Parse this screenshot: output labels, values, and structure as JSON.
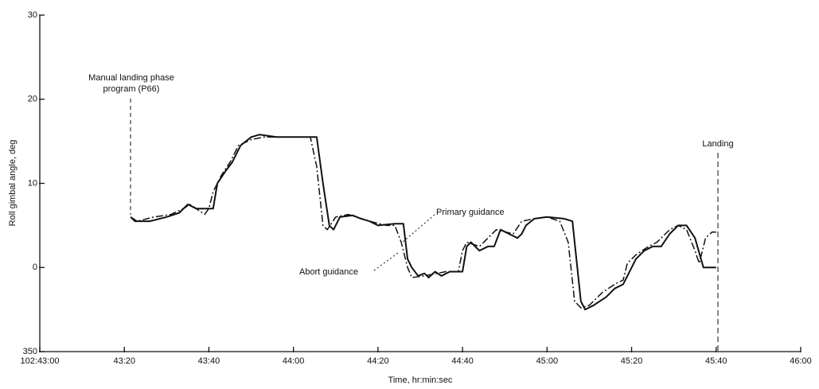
{
  "chart_data": {
    "type": "line",
    "ylabel": "Roll gimbal angle, deg",
    "xlabel": "Time, hr:min:sec",
    "xlim": [
      0,
      180
    ],
    "xticks": [
      {
        "value": 0,
        "label": "102:43:00"
      },
      {
        "value": 20,
        "label": "43:20"
      },
      {
        "value": 40,
        "label": "43:40"
      },
      {
        "value": 60,
        "label": "44:00"
      },
      {
        "value": 80,
        "label": "44:20"
      },
      {
        "value": 100,
        "label": "44:40"
      },
      {
        "value": 120,
        "label": "45:00"
      },
      {
        "value": 140,
        "label": "45:20"
      },
      {
        "value": 160,
        "label": "45:40"
      },
      {
        "value": 180,
        "label": "46:00"
      }
    ],
    "ylim": [
      -10,
      30
    ],
    "yticks": [
      {
        "value": -10,
        "label": "350"
      },
      0,
      10,
      20,
      30
    ],
    "grid": false,
    "annotations": [
      [
        "Manual landing phase",
        "program (P66)"
      ],
      [
        "Landing"
      ],
      [
        "Primary guidance"
      ],
      [
        "Abort guidance"
      ]
    ],
    "series": [
      {
        "name": "Primary guidance",
        "color": "#111111",
        "line_style": "solid",
        "x": [
          21.5,
          22.5,
          26,
          30,
          33,
          35,
          37,
          38.5,
          40,
          41,
          42,
          44,
          45.5,
          47.5,
          50,
          52,
          56,
          60,
          64,
          65.5,
          67,
          68.5,
          69.5,
          71,
          74,
          76,
          78,
          80,
          84,
          86,
          87,
          88,
          89.5,
          91,
          92,
          93.5,
          95,
          97,
          99,
          100,
          101,
          102,
          103,
          104,
          106,
          107.5,
          109,
          111,
          113,
          114,
          115,
          117,
          120,
          124,
          126,
          128,
          129,
          131,
          134,
          136,
          138,
          140,
          141,
          143,
          145,
          147,
          149,
          151,
          153,
          155,
          157,
          160
        ],
        "values": [
          6,
          5.5,
          5.5,
          6,
          6.5,
          7.5,
          7,
          7,
          7,
          7,
          10,
          11.5,
          12.5,
          14.5,
          15.5,
          15.8,
          15.5,
          15.5,
          15.5,
          15.5,
          10,
          5,
          4.5,
          6,
          6.2,
          5.8,
          5.5,
          5,
          5.2,
          5.2,
          1,
          0,
          -1,
          -0.7,
          -1.2,
          -0.5,
          -1,
          -0.5,
          -0.5,
          -0.5,
          2.5,
          3,
          2.5,
          2,
          2.5,
          2.5,
          4.5,
          4,
          3.5,
          4,
          5,
          5.8,
          6,
          5.8,
          5.5,
          -4,
          -5,
          -4.5,
          -3.5,
          -2.5,
          -2,
          0,
          1,
          2,
          2.5,
          2.5,
          4,
          5,
          5,
          3.5,
          0,
          0
        ]
      },
      {
        "name": "Abort guidance",
        "color": "#111111",
        "line_style": "dashdot",
        "x": [
          21.5,
          23,
          27,
          31,
          34,
          35.5,
          37,
          39,
          40,
          41,
          43,
          45,
          47,
          50,
          53,
          60,
          64,
          65.5,
          67,
          68,
          70,
          73,
          78,
          82,
          84,
          85.5,
          87,
          88,
          91,
          93,
          96,
          99,
          100,
          101,
          104,
          108,
          112,
          114,
          117,
          120,
          123,
          125,
          126.5,
          128,
          130,
          133,
          136,
          138,
          139,
          141,
          144,
          146,
          149,
          151,
          153,
          155,
          156,
          157.5,
          159,
          160
        ],
        "values": [
          6,
          5.5,
          6,
          6.3,
          7,
          7.5,
          7,
          6.3,
          7,
          9,
          11,
          12.5,
          14.5,
          15.2,
          15.5,
          15.5,
          15.5,
          12,
          5,
          4.5,
          6,
          6.3,
          5.5,
          5,
          5,
          3,
          0,
          -1.2,
          -1,
          -0.8,
          -0.5,
          -0.5,
          2,
          3,
          2.5,
          4.5,
          4,
          5.5,
          5.8,
          6,
          5.5,
          3,
          -4,
          -4.8,
          -4.5,
          -3,
          -2,
          -1.5,
          0.5,
          1.5,
          2.5,
          3,
          4.5,
          5,
          4.5,
          2,
          0.5,
          3.5,
          4.2,
          4.2
        ]
      }
    ]
  }
}
